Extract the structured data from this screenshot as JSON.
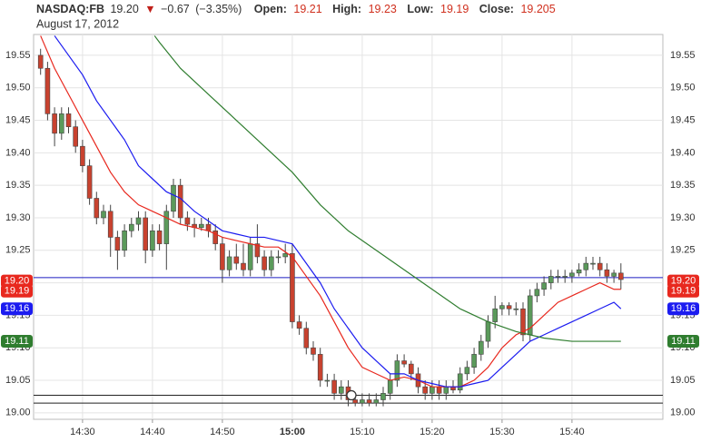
{
  "chart_data": {
    "type": "candlestick",
    "header": {
      "symbol": "NASDAQ:FB",
      "last": "19.20",
      "arrow": "▼",
      "change": "−0.67",
      "change_pct": "(−3.35%)",
      "open_label": "Open:",
      "open": "19.21",
      "high_label": "High:",
      "high": "19.23",
      "low_label": "Low:",
      "low": "19.19",
      "close_label": "Close:",
      "close": "19.205",
      "date": "August 17, 2012"
    },
    "xlim": [
      23,
      113
    ],
    "xticks": [
      {
        "value": 30,
        "label": "14:30"
      },
      {
        "value": 40,
        "label": "14:40"
      },
      {
        "value": 50,
        "label": "14:50"
      },
      {
        "value": 60,
        "label": "15:00"
      },
      {
        "value": 70,
        "label": "15:10"
      },
      {
        "value": 80,
        "label": "15:20"
      },
      {
        "value": 90,
        "label": "15:30"
      },
      {
        "value": 100,
        "label": "15:40"
      }
    ],
    "bold_xtick": 3,
    "ylim": [
      18.99,
      19.582
    ],
    "yticks": [
      {
        "value": 19.0,
        "label": "19.00"
      },
      {
        "value": 19.05,
        "label": "19.05"
      },
      {
        "value": 19.1,
        "label": "19.10"
      },
      {
        "value": 19.15,
        "label": "19.15"
      },
      {
        "value": 19.2,
        "label": "19.20"
      },
      {
        "value": 19.25,
        "label": "19.25"
      },
      {
        "value": 19.3,
        "label": "19.30"
      },
      {
        "value": 19.35,
        "label": "19.35"
      },
      {
        "value": 19.4,
        "label": "19.40"
      },
      {
        "value": 19.45,
        "label": "19.45"
      },
      {
        "value": 19.5,
        "label": "19.50"
      },
      {
        "value": 19.55,
        "label": "19.55"
      }
    ],
    "grid": true,
    "up_color": "#5b9a5b",
    "down_color": "#c8422f",
    "candles": {
      "x": [
        24,
        25,
        26,
        27,
        28,
        29,
        30,
        31,
        32,
        33,
        34,
        35,
        36,
        37,
        38,
        39,
        40,
        41,
        42,
        43,
        44,
        45,
        46,
        47,
        48,
        49,
        50,
        51,
        52,
        53,
        54,
        55,
        56,
        57,
        58,
        59,
        60,
        61,
        62,
        63,
        64,
        65,
        66,
        67,
        68,
        69,
        70,
        71,
        72,
        73,
        74,
        75,
        76,
        77,
        78,
        79,
        80,
        81,
        82,
        83,
        84,
        85,
        86,
        87,
        88,
        89,
        90,
        91,
        92,
        93,
        94,
        95,
        96,
        97,
        98,
        99,
        100,
        101,
        102,
        103,
        104,
        105,
        106,
        107
      ],
      "open": [
        19.55,
        19.53,
        19.46,
        19.43,
        19.46,
        19.44,
        19.41,
        19.38,
        19.33,
        19.3,
        19.31,
        19.27,
        19.25,
        19.28,
        19.29,
        19.3,
        19.25,
        19.28,
        19.26,
        19.31,
        19.35,
        19.3,
        19.29,
        19.285,
        19.29,
        19.28,
        19.26,
        19.22,
        19.24,
        19.23,
        19.22,
        19.26,
        19.24,
        19.22,
        19.24,
        19.24,
        19.245,
        19.14,
        19.13,
        19.1,
        19.09,
        19.05,
        19.05,
        19.03,
        19.04,
        19.02,
        19.015,
        19.02,
        19.015,
        19.02,
        19.03,
        19.05,
        19.08,
        19.075,
        19.06,
        19.04,
        19.03,
        19.04,
        19.03,
        19.04,
        19.035,
        19.06,
        19.07,
        19.09,
        19.11,
        19.14,
        19.16,
        19.165,
        19.16,
        19.16,
        19.12,
        19.18,
        19.19,
        19.2,
        19.21,
        19.21,
        19.21,
        19.215,
        19.22,
        19.23,
        19.23,
        19.22,
        19.21,
        19.215
      ],
      "high": [
        19.56,
        19.54,
        19.47,
        19.47,
        19.47,
        19.45,
        19.42,
        19.39,
        19.34,
        19.32,
        19.32,
        19.28,
        19.29,
        19.3,
        19.31,
        19.31,
        19.29,
        19.29,
        19.32,
        19.36,
        19.36,
        19.31,
        19.3,
        19.3,
        19.3,
        19.29,
        19.27,
        19.25,
        19.26,
        19.26,
        19.27,
        19.29,
        19.25,
        19.25,
        19.25,
        19.26,
        19.26,
        19.15,
        19.14,
        19.11,
        19.1,
        19.06,
        19.06,
        19.05,
        19.05,
        19.03,
        19.03,
        19.03,
        19.03,
        19.04,
        19.06,
        19.09,
        19.09,
        19.08,
        19.07,
        19.05,
        19.05,
        19.05,
        19.05,
        19.05,
        19.07,
        19.08,
        19.1,
        19.12,
        19.15,
        19.18,
        19.17,
        19.17,
        19.17,
        19.17,
        19.19,
        19.2,
        19.21,
        19.22,
        19.22,
        19.22,
        19.22,
        19.23,
        19.24,
        19.24,
        19.24,
        19.23,
        19.22,
        19.23
      ],
      "low": [
        19.52,
        19.45,
        19.41,
        19.42,
        19.43,
        19.4,
        19.37,
        19.32,
        19.29,
        19.29,
        19.24,
        19.22,
        19.24,
        19.27,
        19.28,
        19.23,
        19.24,
        19.25,
        19.22,
        19.3,
        19.29,
        19.28,
        19.27,
        19.28,
        19.27,
        19.25,
        19.2,
        19.21,
        19.22,
        19.21,
        19.21,
        19.23,
        19.21,
        19.21,
        19.23,
        19.23,
        19.13,
        19.12,
        19.09,
        19.08,
        19.04,
        19.04,
        19.02,
        19.02,
        19.01,
        19.01,
        19.01,
        19.01,
        19.01,
        19.01,
        19.02,
        19.04,
        19.07,
        19.05,
        19.03,
        19.02,
        19.02,
        19.02,
        19.02,
        19.03,
        19.03,
        19.05,
        19.06,
        19.08,
        19.1,
        19.13,
        19.15,
        19.15,
        19.15,
        19.11,
        19.11,
        19.17,
        19.18,
        19.19,
        19.2,
        19.2,
        19.2,
        19.21,
        19.21,
        19.22,
        19.21,
        19.2,
        19.2,
        19.19
      ],
      "close": [
        19.53,
        19.46,
        19.43,
        19.46,
        19.44,
        19.41,
        19.38,
        19.33,
        19.3,
        19.31,
        19.27,
        19.25,
        19.28,
        19.29,
        19.3,
        19.25,
        19.28,
        19.26,
        19.31,
        19.35,
        19.3,
        19.29,
        19.285,
        19.29,
        19.28,
        19.26,
        19.22,
        19.24,
        19.23,
        19.22,
        19.26,
        19.24,
        19.22,
        19.24,
        19.24,
        19.245,
        19.14,
        19.13,
        19.1,
        19.09,
        19.05,
        19.05,
        19.03,
        19.04,
        19.02,
        19.015,
        19.02,
        19.015,
        19.02,
        19.03,
        19.05,
        19.08,
        19.075,
        19.06,
        19.04,
        19.03,
        19.04,
        19.03,
        19.04,
        19.035,
        19.06,
        19.07,
        19.09,
        19.11,
        19.14,
        19.16,
        19.165,
        19.16,
        19.16,
        19.12,
        19.18,
        19.19,
        19.2,
        19.21,
        19.21,
        19.21,
        19.215,
        19.22,
        19.23,
        19.23,
        19.22,
        19.21,
        19.215,
        19.205
      ]
    },
    "series": [
      {
        "color": "#e8281e",
        "x": [
          24,
          26,
          28,
          30,
          32,
          34,
          36,
          38,
          40,
          42,
          44,
          46,
          48,
          50,
          52,
          54,
          56,
          58,
          60,
          62,
          64,
          66,
          68,
          70,
          72,
          74,
          76,
          78,
          80,
          82,
          84,
          86,
          88,
          90,
          92,
          94,
          96,
          98,
          100,
          102,
          104,
          106,
          107
        ],
        "values": [
          19.58,
          19.53,
          19.49,
          19.45,
          19.41,
          19.37,
          19.34,
          19.32,
          19.31,
          19.3,
          19.29,
          19.285,
          19.28,
          19.27,
          19.265,
          19.26,
          19.255,
          19.255,
          19.24,
          19.21,
          19.18,
          19.14,
          19.1,
          19.07,
          19.06,
          19.05,
          19.055,
          19.05,
          19.04,
          19.04,
          19.04,
          19.05,
          19.07,
          19.1,
          19.12,
          19.13,
          19.15,
          19.17,
          19.18,
          19.19,
          19.2,
          19.19,
          19.19
        ]
      },
      {
        "color": "#1c1cf0",
        "x": [
          26,
          28,
          30,
          32,
          34,
          36,
          38,
          40,
          42,
          44,
          46,
          48,
          50,
          52,
          54,
          56,
          58,
          60,
          62,
          64,
          66,
          68,
          70,
          72,
          74,
          76,
          78,
          80,
          82,
          84,
          86,
          88,
          90,
          92,
          94,
          96,
          98,
          100,
          102,
          104,
          106,
          107
        ],
        "values": [
          19.58,
          19.55,
          19.52,
          19.48,
          19.45,
          19.42,
          19.38,
          19.36,
          19.34,
          19.33,
          19.31,
          19.295,
          19.28,
          19.275,
          19.27,
          19.27,
          19.265,
          19.26,
          19.23,
          19.2,
          19.16,
          19.13,
          19.1,
          19.08,
          19.06,
          19.06,
          19.05,
          19.045,
          19.04,
          19.04,
          19.045,
          19.05,
          19.07,
          19.09,
          19.11,
          19.12,
          19.13,
          19.14,
          19.15,
          19.16,
          19.17,
          19.16
        ]
      },
      {
        "color": "#2f7d2f",
        "x": [
          40.3,
          41,
          44,
          48,
          52,
          56,
          60,
          64,
          68,
          72,
          76,
          80,
          84,
          88,
          92,
          96,
          100,
          104,
          107
        ],
        "values": [
          19.58,
          19.57,
          19.53,
          19.49,
          19.45,
          19.41,
          19.37,
          19.32,
          19.28,
          19.25,
          19.22,
          19.19,
          19.16,
          19.14,
          19.125,
          19.115,
          19.11,
          19.11,
          19.11
        ]
      }
    ],
    "price_line": {
      "value": 19.208,
      "color": "#1c1cc0"
    },
    "hlines": [
      19.027,
      19.015
    ],
    "tags": {
      "values": [
        19.2,
        19.19,
        19.16,
        19.11
      ],
      "value_labels": [
        "19.20",
        "19.19",
        "19.16",
        "19.11"
      ],
      "colors": [
        "#e8281e",
        "#e8281e",
        "#1c1cf0",
        "#2f7d2f"
      ]
    }
  }
}
